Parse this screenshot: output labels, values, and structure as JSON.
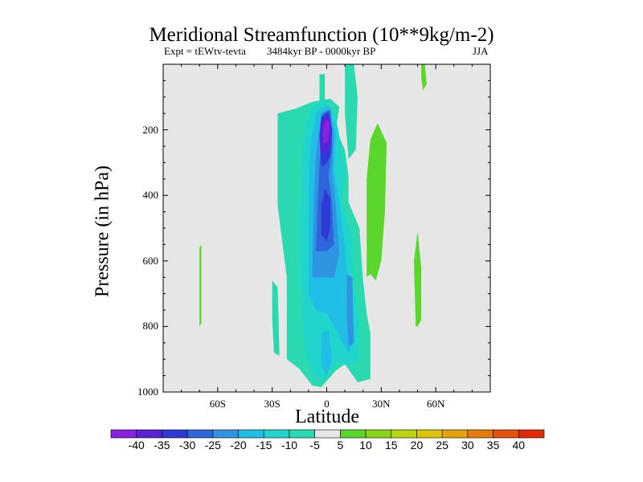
{
  "chart_data": {
    "type": "heatmap",
    "title": "Meridional Streamfunction (10**9kg/m-2)",
    "subtitle_left": "Expt = tEWtv-tevta",
    "subtitle_center": "3484kyr BP - 0000kyr BP",
    "subtitle_right": "JJA",
    "xlabel": "Latitude",
    "ylabel": "Pressure (in hPa)",
    "xlim": [
      -90,
      90
    ],
    "ylim": [
      1000,
      0
    ],
    "x_ticks": [
      {
        "value": -60,
        "label": "60S"
      },
      {
        "value": -30,
        "label": "30S"
      },
      {
        "value": 0,
        "label": "0"
      },
      {
        "value": 30,
        "label": "30N"
      },
      {
        "value": 60,
        "label": "60N"
      }
    ],
    "y_ticks": [
      {
        "value": 200,
        "label": "200"
      },
      {
        "value": 400,
        "label": "400"
      },
      {
        "value": 600,
        "label": "600"
      },
      {
        "value": 800,
        "label": "800"
      },
      {
        "value": 1000,
        "label": "1000"
      }
    ],
    "background_color": "#e6e6e6",
    "colorbar": {
      "labels": [
        "-40",
        "-35",
        "-30",
        "-25",
        "-20",
        "-15",
        "-10",
        "-5",
        "5",
        "10",
        "15",
        "20",
        "25",
        "30",
        "35",
        "40"
      ],
      "colors": [
        "#8b20e0",
        "#5a22d8",
        "#2d3ad6",
        "#2f66dc",
        "#2f95e2",
        "#20bde6",
        "#20d6cc",
        "#2bd9b0",
        "#e6e6e6",
        "#5ad62c",
        "#8ad416",
        "#bcd40e",
        "#dcc40c",
        "#e6a00a",
        "#e67a0a",
        "#e6500c",
        "#e02a0a"
      ]
    },
    "regions": [
      {
        "name": "cyan-band-central",
        "level": -5,
        "color": "#2bd9b0",
        "points": [
          [
            -22,
            900
          ],
          [
            -22,
            650
          ],
          [
            -27,
            430
          ],
          [
            -27,
            150
          ],
          [
            -17,
            135
          ],
          [
            -8,
            115
          ],
          [
            2,
            105
          ],
          [
            7,
            130
          ],
          [
            5,
            200
          ],
          [
            10,
            260
          ],
          [
            12,
            340
          ],
          [
            12,
            420
          ],
          [
            18,
            500
          ],
          [
            20,
            660
          ],
          [
            22,
            760
          ],
          [
            24,
            820
          ],
          [
            24,
            960
          ],
          [
            17,
            970
          ],
          [
            10,
            915
          ],
          [
            5,
            935
          ],
          [
            -3,
            985
          ],
          [
            -8,
            980
          ],
          [
            -15,
            930
          ]
        ]
      },
      {
        "name": "cyan-stream-upper-right",
        "level": -5,
        "color": "#2bd9b0",
        "points": [
          [
            10,
            0
          ],
          [
            15,
            0
          ],
          [
            17,
            100
          ],
          [
            16,
            260
          ],
          [
            12,
            290
          ],
          [
            10,
            150
          ]
        ]
      },
      {
        "name": "cyan-stream-upper-left",
        "level": -5,
        "color": "#2bd9b0",
        "points": [
          [
            -4,
            30
          ],
          [
            -1,
            30
          ],
          [
            -1,
            110
          ],
          [
            -4,
            110
          ]
        ]
      },
      {
        "name": "cyan-left-column",
        "level": -5,
        "color": "#2bd9b0",
        "points": [
          [
            -30,
            660
          ],
          [
            -27,
            680
          ],
          [
            -26,
            890
          ],
          [
            -29,
            880
          ],
          [
            -30,
            780
          ]
        ]
      },
      {
        "name": "teal-band",
        "level": -10,
        "color": "#20d6cc",
        "points": [
          [
            -12,
            880
          ],
          [
            -14,
            700
          ],
          [
            -15,
            520
          ],
          [
            -14,
            380
          ],
          [
            -13,
            220
          ],
          [
            -8,
            130
          ],
          [
            0,
            110
          ],
          [
            5,
            160
          ],
          [
            8,
            250
          ],
          [
            10,
            340
          ],
          [
            8,
            420
          ],
          [
            14,
            530
          ],
          [
            15,
            680
          ],
          [
            18,
            800
          ],
          [
            18,
            900
          ],
          [
            12,
            920
          ],
          [
            5,
            910
          ],
          [
            0,
            960
          ],
          [
            -7,
            955
          ]
        ]
      },
      {
        "name": "lightblue-band",
        "level": -15,
        "color": "#20bde6",
        "points": [
          [
            -10,
            700
          ],
          [
            -10,
            400
          ],
          [
            -9,
            260
          ],
          [
            -6,
            150
          ],
          [
            1,
            125
          ],
          [
            5,
            200
          ],
          [
            4,
            320
          ],
          [
            7,
            420
          ],
          [
            10,
            560
          ],
          [
            12,
            700
          ],
          [
            15,
            850
          ],
          [
            12,
            880
          ],
          [
            5,
            810
          ],
          [
            0,
            760
          ],
          [
            -6,
            750
          ]
        ]
      },
      {
        "name": "lightblue-lower-blob",
        "level": -15,
        "color": "#20bde6",
        "points": [
          [
            -3,
            820
          ],
          [
            1,
            810
          ],
          [
            3,
            900
          ],
          [
            0,
            950
          ],
          [
            -3,
            920
          ]
        ]
      },
      {
        "name": "midblue-band",
        "level": -20,
        "color": "#2f95e2",
        "points": [
          [
            -8,
            650
          ],
          [
            -7,
            420
          ],
          [
            -6,
            280
          ],
          [
            -3,
            150
          ],
          [
            2,
            135
          ],
          [
            4,
            230
          ],
          [
            3,
            330
          ],
          [
            5,
            430
          ],
          [
            7,
            580
          ],
          [
            4,
            650
          ],
          [
            0,
            650
          ]
        ]
      },
      {
        "name": "midblue-right-column",
        "level": -20,
        "color": "#2f95e2",
        "points": [
          [
            11,
            640
          ],
          [
            14,
            650
          ],
          [
            15,
            850
          ],
          [
            12,
            860
          ],
          [
            11,
            760
          ]
        ]
      },
      {
        "name": "blue-band",
        "level": -25,
        "color": "#2f66dc",
        "points": [
          [
            -6,
            570
          ],
          [
            -5,
            420
          ],
          [
            -4,
            300
          ],
          [
            -2,
            150
          ],
          [
            2,
            140
          ],
          [
            3,
            250
          ],
          [
            1,
            340
          ],
          [
            3,
            430
          ],
          [
            4,
            550
          ],
          [
            0,
            570
          ]
        ]
      },
      {
        "name": "darkblue-core-lower",
        "level": -30,
        "color": "#2d3ad6",
        "points": [
          [
            -3,
            520
          ],
          [
            -3,
            430
          ],
          [
            -1,
            380
          ],
          [
            2,
            410
          ],
          [
            2,
            500
          ],
          [
            0,
            540
          ]
        ]
      },
      {
        "name": "darkblue-core-upper",
        "level": -30,
        "color": "#2d3ad6",
        "points": [
          [
            -3,
            310
          ],
          [
            -4,
            220
          ],
          [
            -3,
            160
          ],
          [
            1,
            145
          ],
          [
            3,
            200
          ],
          [
            2,
            280
          ],
          [
            -1,
            310
          ]
        ]
      },
      {
        "name": "indigo-core",
        "level": -35,
        "color": "#5a22d8",
        "points": [
          [
            -3,
            270
          ],
          [
            -3,
            180
          ],
          [
            0,
            155
          ],
          [
            2,
            180
          ],
          [
            2,
            240
          ],
          [
            0,
            270
          ]
        ]
      },
      {
        "name": "violet-core",
        "level": -40,
        "color": "#8b20e0",
        "points": [
          [
            -2,
            240
          ],
          [
            -2,
            190
          ],
          [
            0,
            168
          ],
          [
            2,
            180
          ],
          [
            1,
            220
          ],
          [
            0,
            240
          ]
        ]
      },
      {
        "name": "green-column-30n",
        "level": 5,
        "color": "#5ad62c",
        "points": [
          [
            22,
            650
          ],
          [
            22,
            350
          ],
          [
            24,
            230
          ],
          [
            28,
            180
          ],
          [
            33,
            240
          ],
          [
            32,
            450
          ],
          [
            30,
            600
          ],
          [
            27,
            660
          ],
          [
            24,
            640
          ]
        ]
      },
      {
        "name": "green-column-50n",
        "level": 5,
        "color": "#5ad62c",
        "points": [
          [
            49,
            800
          ],
          [
            48,
            600
          ],
          [
            50,
            510
          ],
          [
            52,
            620
          ],
          [
            52,
            780
          ],
          [
            50,
            800
          ]
        ]
      },
      {
        "name": "green-streak-top-right",
        "level": 5,
        "color": "#5ad62c",
        "points": [
          [
            52,
            0
          ],
          [
            54,
            0
          ],
          [
            55,
            60
          ],
          [
            53,
            80
          ],
          [
            52,
            40
          ]
        ]
      },
      {
        "name": "green-streak-left",
        "level": 5,
        "color": "#5ad62c",
        "points": [
          [
            -70,
            560
          ],
          [
            -69,
            550
          ],
          [
            -69,
            790
          ],
          [
            -70,
            800
          ]
        ]
      }
    ]
  }
}
